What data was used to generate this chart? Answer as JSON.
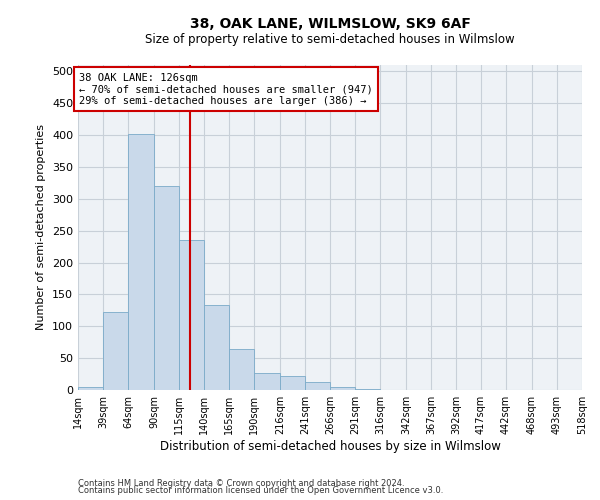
{
  "title1": "38, OAK LANE, WILMSLOW, SK9 6AF",
  "title2": "Size of property relative to semi-detached houses in Wilmslow",
  "xlabel": "Distribution of semi-detached houses by size in Wilmslow",
  "ylabel": "Number of semi-detached properties",
  "bar_color": "#c9d9ea",
  "bar_edge_color": "#7aaac8",
  "vline_color": "#cc0000",
  "vline_x": 126,
  "bin_edges": [
    14,
    39,
    64,
    90,
    115,
    140,
    165,
    190,
    216,
    241,
    266,
    291,
    316,
    342,
    367,
    392,
    417,
    442,
    468,
    493,
    518
  ],
  "bar_heights": [
    5,
    123,
    401,
    320,
    235,
    133,
    64,
    27,
    22,
    12,
    5,
    1,
    0,
    0,
    0,
    0,
    0,
    0,
    0,
    0
  ],
  "ylim": [
    0,
    510
  ],
  "yticks": [
    0,
    50,
    100,
    150,
    200,
    250,
    300,
    350,
    400,
    450,
    500
  ],
  "annotation_text": "38 OAK LANE: 126sqm\n← 70% of semi-detached houses are smaller (947)\n29% of semi-detached houses are larger (386) →",
  "annotation_box_color": "#ffffff",
  "annotation_box_edge": "#cc0000",
  "footnote1": "Contains HM Land Registry data © Crown copyright and database right 2024.",
  "footnote2": "Contains public sector information licensed under the Open Government Licence v3.0.",
  "grid_color": "#c8d0d8",
  "bg_color": "#eef2f6"
}
